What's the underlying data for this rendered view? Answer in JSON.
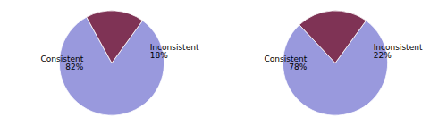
{
  "chart_data": [
    {
      "type": "pie",
      "categories": [
        "Consistent",
        "Inconsistent"
      ],
      "values": [
        82,
        18
      ],
      "value_labels": [
        "82%",
        "18%"
      ],
      "colors": [
        "#9999dd",
        "#7f3355"
      ],
      "data_labels": true
    },
    {
      "type": "pie",
      "categories": [
        "Consistent",
        "Inconsistent"
      ],
      "values": [
        78,
        22
      ],
      "value_labels": [
        "78%",
        "22%"
      ],
      "colors": [
        "#9999dd",
        "#7f3355"
      ],
      "data_labels": true
    }
  ]
}
